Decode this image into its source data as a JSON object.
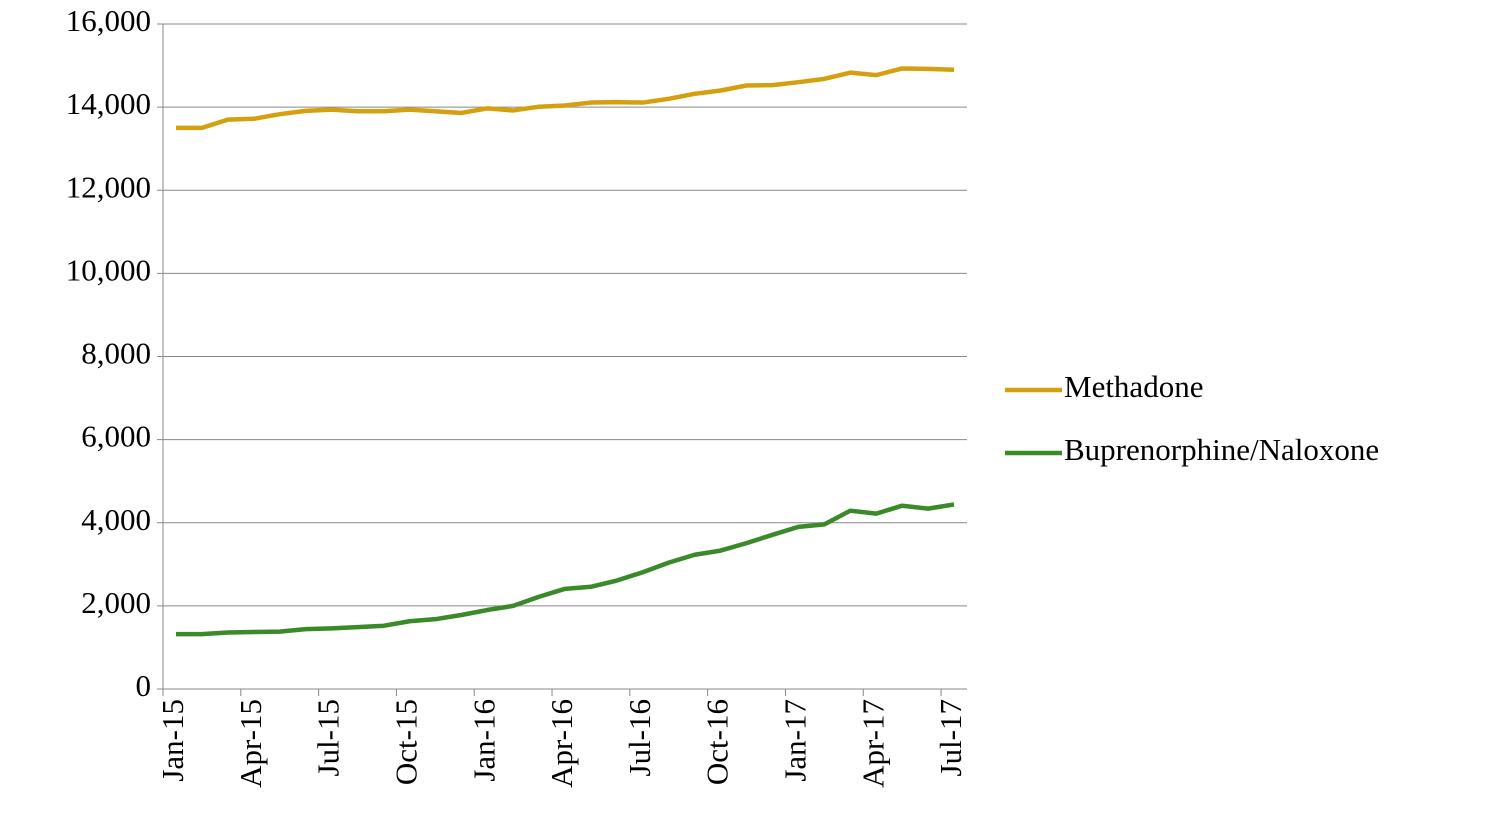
{
  "chart_data": {
    "type": "line",
    "categories": [
      "Jan-15",
      null,
      null,
      "Apr-15",
      null,
      null,
      "Jul-15",
      null,
      null,
      "Oct-15",
      null,
      null,
      "Jan-16",
      null,
      null,
      "Apr-16",
      null,
      null,
      "Jul-16",
      null,
      null,
      "Oct-16",
      null,
      null,
      "Jan-17",
      null,
      null,
      "Apr-17",
      null,
      null,
      "Jul-17"
    ],
    "series": [
      {
        "name": "Methadone",
        "color": "#d4a010",
        "values": [
          13500,
          13500,
          13700,
          13720,
          13830,
          13910,
          13940,
          13900,
          13900,
          13940,
          13900,
          13860,
          13970,
          13920,
          14010,
          14040,
          14110,
          14120,
          14110,
          14200,
          14320,
          14400,
          14520,
          14530,
          14600,
          14680,
          14830,
          14770,
          14930,
          14920,
          14900
        ]
      },
      {
        "name": "Buprenorphine/Naloxone",
        "color": "#3a8a2a",
        "values": [
          1320,
          1320,
          1360,
          1370,
          1380,
          1440,
          1460,
          1490,
          1520,
          1630,
          1680,
          1780,
          1900,
          2000,
          2220,
          2410,
          2460,
          2610,
          2810,
          3040,
          3230,
          3330,
          3510,
          3710,
          3900,
          3960,
          4290,
          4220,
          4410,
          4340,
          4440
        ]
      }
    ],
    "ylim": [
      0,
      16000
    ],
    "yticks": [
      0,
      {
        "value": 2000,
        "label": "2,000"
      },
      {
        "value": 4000,
        "label": "4,000"
      },
      {
        "value": 6000,
        "label": "6,000"
      },
      {
        "value": 8000,
        "label": "8,000"
      },
      {
        "value": 10000,
        "label": "10,000"
      },
      {
        "value": 12000,
        "label": "12,000"
      },
      {
        "value": 14000,
        "label": "14,000"
      },
      {
        "value": 16000,
        "label": "16,000"
      }
    ],
    "grid": true,
    "legend": "right"
  }
}
